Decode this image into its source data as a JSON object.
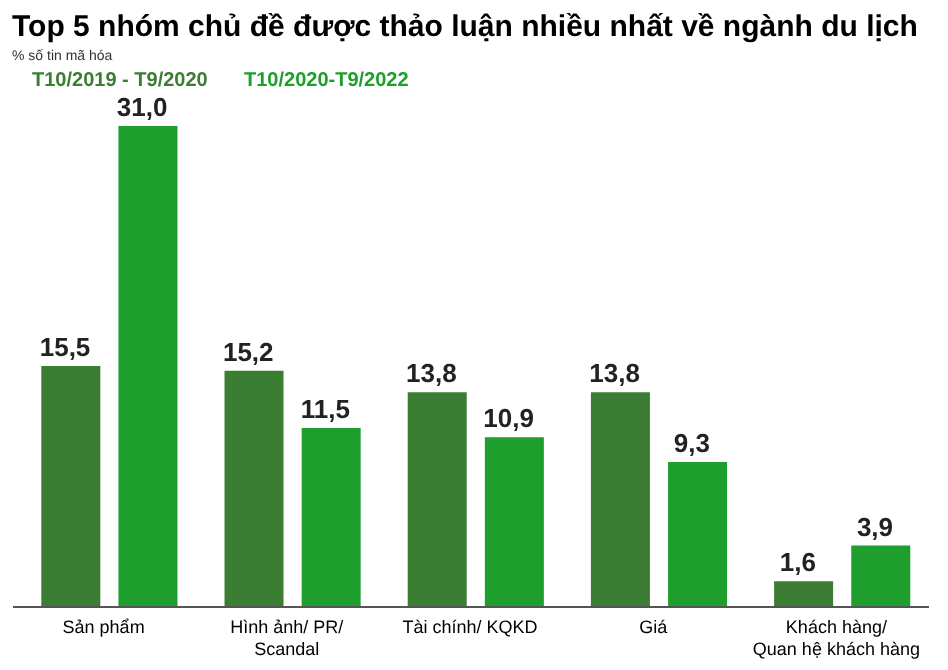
{
  "chart_data": {
    "type": "bar",
    "title": "Top 5 nhóm chủ đề được thảo luận nhiều nhất về ngành du lịch",
    "annotations": [
      "% số tin mã hóa"
    ],
    "categories": [
      "Sản phẩm",
      "Hình ảnh/ PR/ Scandal",
      "Tài chính/ KQKD",
      "Giá",
      "Khách hàng/ Quan hệ khách hàng"
    ],
    "series": [
      {
        "name": "T10/2019 - T9/2020",
        "color": "#3b7d33",
        "values": [
          15.5,
          15.2,
          13.8,
          13.8,
          1.6
        ],
        "value_labels": [
          "15,5",
          "15,2",
          "13,8",
          "13,8",
          "1,6"
        ]
      },
      {
        "name": "T10/2020-T9/2022",
        "color": "#1e9e2c",
        "values": [
          31.0,
          11.5,
          10.9,
          9.3,
          3.9
        ],
        "value_labels": [
          "31,0",
          "11,5",
          "10,9",
          "9,3",
          "3,9"
        ]
      }
    ],
    "grid": false,
    "legend": "top left"
  }
}
